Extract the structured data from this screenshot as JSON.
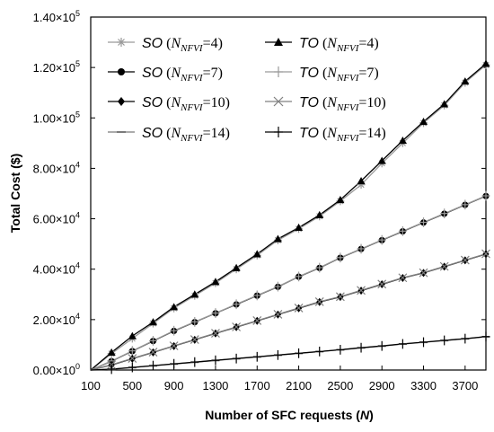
{
  "chart_data": {
    "type": "line",
    "xlabel_prefix": "Number of SFC requests (",
    "xlabel_var": "N",
    "xlabel_suffix": ")",
    "ylabel": "Total Cost ($)",
    "xlim": [
      100,
      3900
    ],
    "ylim": [
      0,
      140000
    ],
    "x_ticks": [
      "100",
      "500",
      "900",
      "1300",
      "1700",
      "2100",
      "2500",
      "2900",
      "3300",
      "3700"
    ],
    "y_ticks": [
      "0.00×10",
      "2.00×10",
      "4.00×10",
      "6.00×10",
      "8.00×10",
      "1.00×10",
      "1.20×10",
      "1.40×10"
    ],
    "y_tick_exponents": [
      "0",
      "4",
      "4",
      "4",
      "4",
      "5",
      "5",
      "5"
    ],
    "x": [
      100,
      300,
      500,
      700,
      900,
      1100,
      1300,
      1500,
      1700,
      1900,
      2100,
      2300,
      2500,
      2700,
      2900,
      3100,
      3300,
      3500,
      3700,
      3900
    ],
    "series": [
      {
        "name": "SO",
        "nfvi": "4",
        "marker": "asterisk",
        "color": "#9a9a9a",
        "values": [
          0,
          6500,
          12500,
          18500,
          24500,
          29500,
          34500,
          40000,
          45500,
          51500,
          56000,
          61000,
          67000,
          73500,
          82000,
          90000,
          98000,
          105000,
          114000,
          121000
        ]
      },
      {
        "name": "TO",
        "nfvi": "4",
        "marker": "triangle",
        "color": "#000000",
        "values": [
          0,
          7000,
          13500,
          19000,
          25000,
          30000,
          35000,
          40500,
          46000,
          52000,
          56500,
          61500,
          67500,
          75000,
          83000,
          91000,
          98500,
          105500,
          114500,
          121500
        ]
      },
      {
        "name": "SO",
        "nfvi": "7",
        "marker": "circle",
        "color": "#000000",
        "values": [
          0,
          3500,
          7500,
          11500,
          15500,
          19000,
          22500,
          26000,
          29500,
          33000,
          37000,
          40500,
          44500,
          48000,
          51500,
          55000,
          58500,
          62000,
          65500,
          69000
        ]
      },
      {
        "name": "TO",
        "nfvi": "7",
        "marker": "plus",
        "color": "#9a9a9a",
        "values": [
          0,
          3600,
          7600,
          11600,
          15600,
          19100,
          22600,
          26100,
          29600,
          33100,
          37100,
          40600,
          44600,
          48100,
          51600,
          55100,
          58600,
          62100,
          65600,
          69100
        ]
      },
      {
        "name": "SO",
        "nfvi": "10",
        "marker": "diamond",
        "color": "#000000",
        "values": [
          0,
          2000,
          4500,
          7000,
          9500,
          12000,
          14500,
          17000,
          19500,
          22000,
          24500,
          27000,
          29000,
          31500,
          34000,
          36500,
          38500,
          41000,
          43500,
          46000
        ]
      },
      {
        "name": "TO",
        "nfvi": "10",
        "marker": "x",
        "color": "#808080",
        "values": [
          0,
          2100,
          4600,
          7100,
          9600,
          12100,
          14600,
          17100,
          19600,
          22100,
          24600,
          27100,
          29100,
          31600,
          34100,
          36600,
          38600,
          41100,
          43600,
          46100
        ]
      },
      {
        "name": "SO",
        "nfvi": "14",
        "marker": "dash",
        "color": "#7a7a7a",
        "values": [
          0,
          300,
          1000,
          1700,
          2400,
          3100,
          3800,
          4500,
          5200,
          5900,
          6600,
          7300,
          8000,
          8800,
          9500,
          10300,
          11000,
          11700,
          12400,
          13200
        ]
      },
      {
        "name": "TO",
        "nfvi": "14",
        "marker": "plus",
        "color": "#000000",
        "values": [
          0,
          350,
          1050,
          1750,
          2450,
          3150,
          3850,
          4550,
          5250,
          5950,
          6650,
          7350,
          8050,
          8850,
          9550,
          10350,
          11050,
          11750,
          12450,
          13250
        ]
      }
    ],
    "legend_placement": "top-left",
    "legend_sub": "NFVI",
    "legend_var": "N",
    "grid": false
  }
}
